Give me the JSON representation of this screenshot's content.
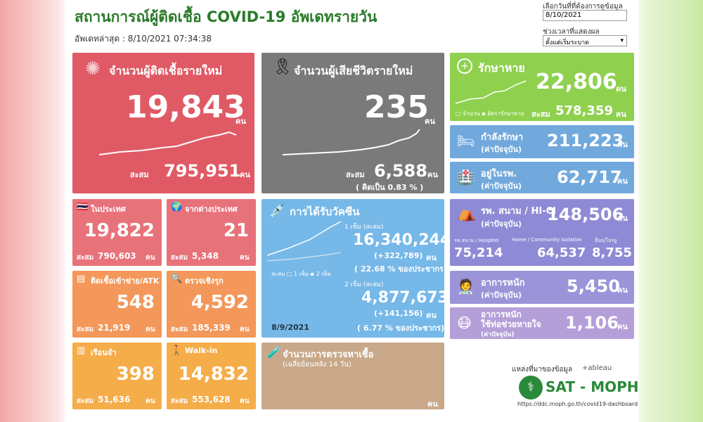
{
  "header": {
    "title": "สถานการณ์ผู้ติดเชื้อ COVID-19 อัพเดทรายวัน",
    "updated": "อัพเดทล่าสุด : 8/10/2021 07:34:38"
  },
  "filters": {
    "date_label": "เลือกวันที่ที่ต้องการดูข้อมูล",
    "date": "8/10/2021",
    "period_label": "ช่วงเวลาที่แสดงผล",
    "period": "ตั้งแต่เริ่มระบาด"
  },
  "new_cases": {
    "title": "จำนวนผู้ติดเชื้อรายใหม่",
    "value": "19,843",
    "unit": "คน",
    "total_label": "สะสม",
    "total": "795,951",
    "total_unit": "คน"
  },
  "deaths": {
    "title": "จำนวนผู้เสียชีวิตรายใหม่",
    "value": "235",
    "unit": "คน",
    "total_label": "สะสม",
    "total": "6,588",
    "total_unit": "คน",
    "rate": "( คิดเป็น   0.83 % )"
  },
  "recovered": {
    "title": "รักษาหาย",
    "value": "22,806",
    "unit": "คน",
    "legend": [
      "จำนวน",
      "อัตรารักษาหาย"
    ],
    "total_label": "สะสม",
    "total": "578,359",
    "total_unit": "คน"
  },
  "treating": {
    "title": "กำลังรักษา",
    "note": "(ค่าปัจจุบัน)",
    "value": "211,223",
    "unit": "คน"
  },
  "hospital": {
    "title": "อยู่ในรพ.",
    "note": "(ค่าปัจจุบัน)",
    "value": "62,717",
    "unit": "คน"
  },
  "field": {
    "title": "รพ. สนาม / HI-CI",
    "note": "(ค่าปัจจุบัน)",
    "value": "148,506",
    "unit": "คน",
    "parts": [
      {
        "label": "รพ.สนาม / Hospitel",
        "value": "75,214"
      },
      {
        "label": "Home / Community Isolation",
        "value": "64,537"
      },
      {
        "label": "อื่นๆ/โปรยู",
        "value": "8,755"
      }
    ]
  },
  "severe": {
    "title": "อาการหนัก",
    "note": "(ค่าปัจจุบัน)",
    "value": "5,450",
    "unit": "คน"
  },
  "ventilator": {
    "title": "อาการหนัก",
    "subtitle": "ใช้ท่อช่วยหายใจ",
    "note": "(ค่าปัจจุบัน)",
    "value": "1,106",
    "unit": "คน"
  },
  "domestic": {
    "title": "ในประเทศ",
    "value": "19,822",
    "total_label": "สะสม",
    "total": "790,603",
    "total_unit": "คน"
  },
  "imported": {
    "title": "จากต่างประเทศ",
    "value": "21",
    "total_label": "สะสม",
    "total": "5,348",
    "total_unit": "คน"
  },
  "atk": {
    "title": "ติดเชื้อเข้าข่าย/ATK",
    "value": "548",
    "total_label": "สะสม",
    "total": "21,919",
    "total_unit": "คน"
  },
  "active": {
    "title": "ตรวจเชิงรุก",
    "value": "4,592",
    "total_label": "สะสม",
    "total": "185,339",
    "total_unit": "คน"
  },
  "prison": {
    "title": "เรือนจำ",
    "value": "398",
    "total_label": "สะสม",
    "total": "51,636",
    "total_unit": "คน"
  },
  "walkin": {
    "title": "Walk-in",
    "value": "14,832",
    "total_label": "สะสม",
    "total": "553,628",
    "total_unit": "คน"
  },
  "vaccine": {
    "title": "การได้รับวัคซีน",
    "dose1_label": "1 เข็ม (สะสม)",
    "dose1": "16,340,244",
    "dose1_new": "(+322,789)",
    "dose1_unit": "คน",
    "dose1_pct": "( 22.68 % ของประชากร)",
    "dose2_label": "2 เข็ม (สะสม)",
    "dose2": "4,877,673",
    "dose2_new": "(+141,156)",
    "dose2_unit": "คน",
    "dose2_pct": "( 6.77 % ของประชากร)",
    "legend": [
      "สะสม",
      "1 เข็ม",
      "2 เข็ม"
    ],
    "date": "8/9/2021"
  },
  "tests": {
    "title": "จำนวนการตรวจหาเชื้อ",
    "note": "(เฉลี่ยย้อนหลัง 14 วัน)",
    "unit": "คน"
  },
  "source": {
    "label": "แหล่งที่มาของข้อมูล",
    "tableau": "+ableau",
    "org": "SAT - MOPH",
    "url": "https://ddc.moph.go.th/covid19-dashboard"
  }
}
